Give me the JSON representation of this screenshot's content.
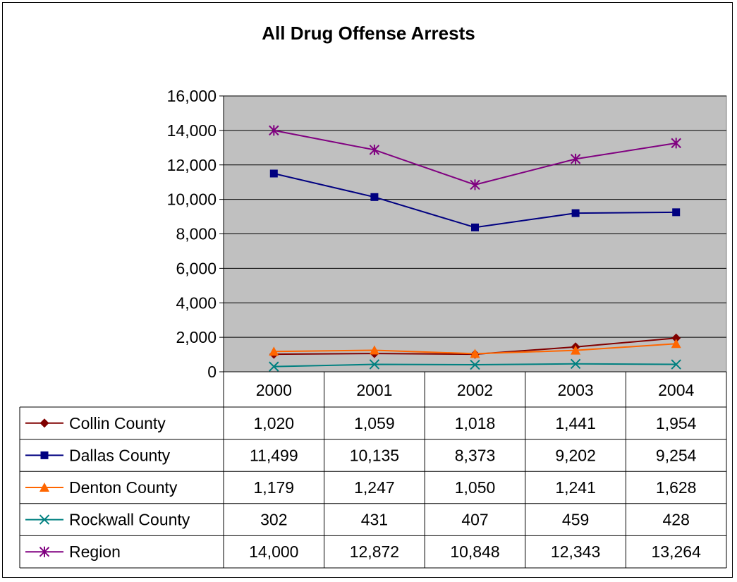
{
  "chart_data": {
    "type": "line",
    "title": "All Drug Offense Arrests",
    "categories": [
      "2000",
      "2001",
      "2002",
      "2003",
      "2004"
    ],
    "ylim": [
      0,
      16000
    ],
    "yticks": [
      0,
      2000,
      4000,
      6000,
      8000,
      10000,
      12000,
      14000,
      16000
    ],
    "ytick_labels": [
      "0",
      "2,000",
      "4,000",
      "6,000",
      "8,000",
      "10,000",
      "12,000",
      "14,000",
      "16,000"
    ],
    "grid": true,
    "plot_background": "#c0c0c0",
    "legend": "data-table-below",
    "series": [
      {
        "name": "Collin County",
        "color": "#800000",
        "marker": "diamond",
        "values": [
          1020,
          1059,
          1018,
          1441,
          1954
        ],
        "labels": [
          "1,020",
          "1,059",
          "1,018",
          "1,441",
          "1,954"
        ]
      },
      {
        "name": "Dallas County",
        "color": "#000080",
        "marker": "square",
        "values": [
          11499,
          10135,
          8373,
          9202,
          9254
        ],
        "labels": [
          "11,499",
          "10,135",
          "8,373",
          "9,202",
          "9,254"
        ]
      },
      {
        "name": "Denton County",
        "color": "#ff6600",
        "marker": "triangle",
        "values": [
          1179,
          1247,
          1050,
          1241,
          1628
        ],
        "labels": [
          "1,179",
          "1,247",
          "1,050",
          "1,241",
          "1,628"
        ]
      },
      {
        "name": "Rockwall County",
        "color": "#008080",
        "marker": "x",
        "values": [
          302,
          431,
          407,
          459,
          428
        ],
        "labels": [
          "302",
          "431",
          "407",
          "459",
          "428"
        ]
      },
      {
        "name": "Region",
        "color": "#800080",
        "marker": "star",
        "values": [
          14000,
          12872,
          10848,
          12343,
          13264
        ],
        "labels": [
          "14,000",
          "12,872",
          "10,848",
          "12,343",
          "13,264"
        ]
      }
    ]
  }
}
